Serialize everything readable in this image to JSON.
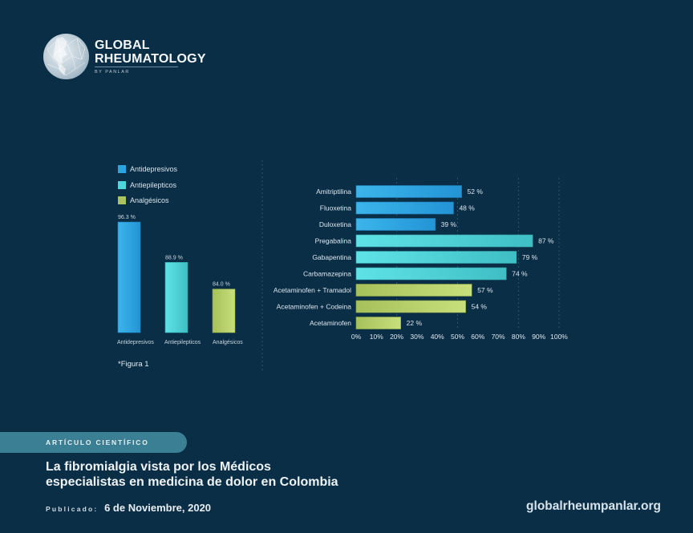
{
  "brand": {
    "name_line1": "GLOBAL",
    "name_line2": "RHEUMATOLOGY",
    "byline": "BY PANLAR"
  },
  "colors": {
    "background": "#0b2e47",
    "antidepresivos": "#2aa3df",
    "antiepilepticos": "#4fd6dc",
    "analgesicos": "#a9c45e",
    "pill": "#3a7f93"
  },
  "chart_data": [
    {
      "type": "bar",
      "orientation": "vertical",
      "title": "",
      "categories": [
        "Antidepresivos",
        "Antiepilepticos",
        "Analgésicos"
      ],
      "values": [
        96.3,
        88.9,
        84.0
      ],
      "value_labels": [
        "96.3 %",
        "88.9 %",
        "84.0 %"
      ],
      "legend": [
        "Antidepresivos",
        "Antiepilepticos",
        "Analgésicos"
      ],
      "legend_position": "top-left",
      "note": "*Figura 1"
    },
    {
      "type": "bar",
      "orientation": "horizontal",
      "categories": [
        "Amitriptilina",
        "Fluoxetina",
        "Duloxetina",
        "Pregabalina",
        "Gabapentina",
        "Carbamazepina",
        "Acetaminofen + Tramadol",
        "Acetaminofen + Codeina",
        "Acetaminofen"
      ],
      "values": [
        52,
        48,
        39,
        87,
        79,
        74,
        57,
        54,
        22
      ],
      "value_labels": [
        "52 %",
        "48 %",
        "39 %",
        "87 %",
        "79 %",
        "74 %",
        "57 %",
        "54 %",
        "22 %"
      ],
      "groups": [
        "antidepresivos",
        "antidepresivos",
        "antidepresivos",
        "antiepilepticos",
        "antiepilepticos",
        "antiepilepticos",
        "analgesicos",
        "analgesicos",
        "analgesicos"
      ],
      "xlim": [
        0,
        100
      ],
      "x_ticks": [
        "0%",
        "10%",
        "20%",
        "30%",
        "40%",
        "50%",
        "60%",
        "70%",
        "80%",
        "90%",
        "100%"
      ],
      "gridlines": [
        20,
        50,
        80,
        100
      ]
    }
  ],
  "article": {
    "category": "ARTÍCULO CIENTÍFICO",
    "title_line1": "La fibromialgia vista por los Médicos",
    "title_line2": "especialistas en medicina de dolor en Colombia",
    "published_label": "Publicado:",
    "published_date": "6 de Noviembre, 2020"
  },
  "footer": {
    "website": "globalrheumpanlar.org"
  }
}
